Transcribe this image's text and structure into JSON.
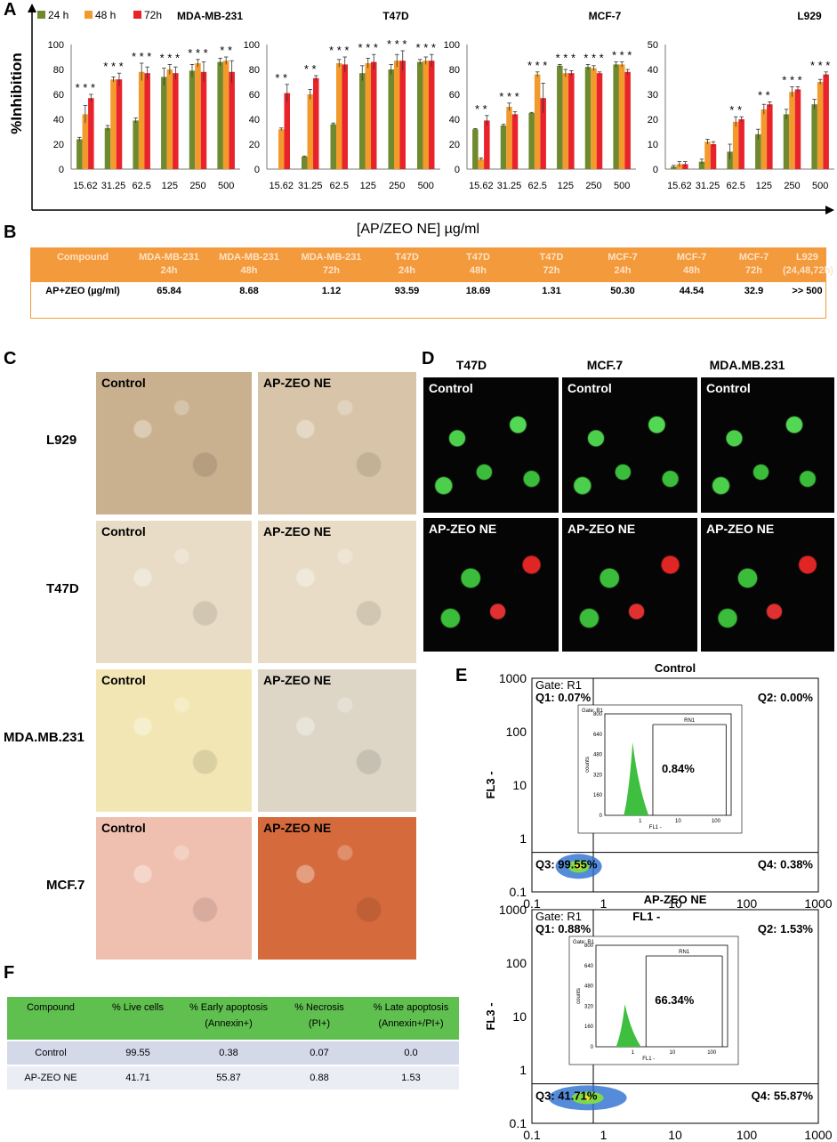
{
  "panels": {
    "a": "A",
    "b": "B",
    "c": "C",
    "d": "D",
    "e": "E",
    "f": "F"
  },
  "legend": [
    {
      "label": "24 h",
      "color": "#6f8a2e"
    },
    {
      "label": "48 h",
      "color": "#f39a2c"
    },
    {
      "label": "72h",
      "color": "#e8232b"
    }
  ],
  "y_axis_label": "%Inhibition",
  "x_axis_label": "[AP/ZEO NE] µg/ml",
  "chart_data": [
    {
      "type": "bar",
      "title": "MDA-MB-231",
      "categories": [
        "15.62",
        "31.25",
        "62.5",
        "125",
        "250",
        "500"
      ],
      "ylim": [
        0,
        100
      ],
      "yticks": [
        0,
        20,
        40,
        60,
        80,
        100
      ],
      "series": [
        {
          "name": "24 h",
          "values": [
            24,
            33,
            39,
            74,
            79,
            86
          ]
        },
        {
          "name": "48 h",
          "values": [
            44,
            72,
            78,
            80,
            85,
            87
          ]
        },
        {
          "name": "72h",
          "values": [
            57,
            72,
            77,
            77,
            78,
            78
          ]
        }
      ],
      "errors": [
        [
          1.5,
          2,
          2,
          7,
          5,
          3
        ],
        [
          7,
          2,
          7,
          4,
          3,
          3
        ],
        [
          3,
          5,
          5,
          5,
          8,
          9
        ]
      ],
      "significance": [
        "*  * *",
        "* * *",
        "*  * *",
        "* * *",
        "* * *",
        "* *"
      ]
    },
    {
      "type": "bar",
      "title": "T47D",
      "categories": [
        "15.62",
        "31.25",
        "62.5",
        "125",
        "250",
        "500"
      ],
      "ylim": [
        0,
        100
      ],
      "yticks": [
        0,
        20,
        40,
        60,
        80,
        100
      ],
      "series": [
        {
          "name": "24 h",
          "values": [
            0,
            10,
            36,
            77,
            80,
            86
          ]
        },
        {
          "name": "48 h",
          "values": [
            32,
            60,
            85,
            85,
            87,
            87
          ]
        },
        {
          "name": "72h",
          "values": [
            61,
            73,
            84,
            86,
            87,
            87
          ]
        }
      ],
      "errors": [
        [
          0,
          0.5,
          1,
          6,
          4,
          2
        ],
        [
          1,
          4,
          3,
          4,
          5,
          3
        ],
        [
          7,
          2,
          6,
          6,
          8,
          5
        ]
      ],
      "significance": [
        "* *",
        "* *",
        "* * *",
        "* * *",
        "* * *",
        "* * *"
      ]
    },
    {
      "type": "bar",
      "title": "MCF-7",
      "categories": [
        "15.62",
        "31.25",
        "62.5",
        "125",
        "250",
        "500"
      ],
      "ylim": [
        0,
        100
      ],
      "yticks": [
        0,
        20,
        40,
        60,
        80,
        100
      ],
      "series": [
        {
          "name": "24 h",
          "values": [
            32,
            35,
            45,
            83,
            82,
            84
          ]
        },
        {
          "name": "48 h",
          "values": [
            8,
            50,
            76,
            77,
            81,
            84
          ]
        },
        {
          "name": "72h",
          "values": [
            39,
            44,
            57,
            77,
            77,
            78
          ]
        }
      ],
      "errors": [
        [
          0.5,
          1,
          0.5,
          1,
          2,
          2
        ],
        [
          1,
          3,
          2,
          3,
          2,
          2
        ],
        [
          4,
          2,
          12,
          2,
          1,
          2
        ]
      ],
      "significance": [
        "* *",
        "* * *",
        "* * *",
        "* * *",
        "* * *",
        "* * *"
      ]
    },
    {
      "type": "bar",
      "title": "L929",
      "categories": [
        "15.62",
        "31.25",
        "62.5",
        "125",
        "250",
        "500"
      ],
      "ylim": [
        0,
        50
      ],
      "yticks": [
        0,
        10,
        20,
        30,
        40,
        50
      ],
      "series": [
        {
          "name": "24 h",
          "values": [
            1,
            3,
            7,
            14,
            22,
            26
          ]
        },
        {
          "name": "48 h",
          "values": [
            2,
            11,
            19,
            24,
            31,
            35
          ]
        },
        {
          "name": "72h",
          "values": [
            2,
            10,
            20,
            26,
            32,
            38
          ]
        }
      ],
      "errors": [
        [
          0.5,
          1,
          3,
          2,
          2,
          2
        ],
        [
          1,
          1,
          2,
          2,
          2,
          1
        ],
        [
          1,
          1,
          1,
          1,
          1,
          1
        ]
      ],
      "significance": [
        "",
        "",
        "* *",
        "* *",
        "* * *",
        "* * *"
      ]
    }
  ],
  "ic50_table": {
    "headers": [
      [
        "Compound",
        ""
      ],
      [
        "MDA-MB-231",
        "24h"
      ],
      [
        "MDA-MB-231",
        "48h"
      ],
      [
        "MDA-MB-231",
        "72h"
      ],
      [
        "T47D",
        "24h"
      ],
      [
        "T47D",
        "48h"
      ],
      [
        "T47D",
        "72h"
      ],
      [
        "MCF-7",
        "24h"
      ],
      [
        "MCF-7",
        "48h"
      ],
      [
        "MCF-7",
        "72h"
      ],
      [
        "L929",
        "(24,48,72h)"
      ]
    ],
    "row": [
      "AP+ZEO (µg/ml)",
      "65.84",
      "8.68",
      "1.12",
      "93.59",
      "18.69",
      "1.31",
      "50.30",
      "44.54",
      "32.9",
      ">> 500"
    ]
  },
  "panel_c": {
    "rows": [
      "L929",
      "T47D",
      "MDA.MB.231",
      "MCF.7"
    ],
    "control": "Control",
    "treated": "AP-ZEO NE"
  },
  "panel_d": {
    "columns": [
      "T47D",
      "MCF.7",
      "MDA.MB.231"
    ],
    "control": "Control",
    "treated": "AP-ZEO NE"
  },
  "flow": [
    {
      "title": "Control",
      "gate": "Gate: R1",
      "q1": "Q1: 0.07%",
      "q2": "Q2: 0.00%",
      "q3": "Q3: 99.55%",
      "q4": "Q4: 0.38%",
      "inset_pct": "0.84%",
      "inset_gate": "Gate: R1",
      "rn": "RN1",
      "inset_x": "FL1 -",
      "inset_y": "counts"
    },
    {
      "title": "AP-ZEO NE",
      "gate": "Gate: R1",
      "q1": "Q1: 0.88%",
      "q2": "Q2: 1.53%",
      "q3": "Q3: 41.71%",
      "q4": "Q4: 55.87%",
      "inset_pct": "66.34%",
      "inset_gate": "Gate: R1",
      "rn": "RN1",
      "inset_x": "FL1 -",
      "inset_y": "counts"
    }
  ],
  "flow_axes": {
    "x": "FL1 -",
    "y": "FL3 -",
    "ticks": [
      "0.1",
      "1",
      "10",
      "100",
      "1000"
    ],
    "inset_yticks": [
      "0",
      "160",
      "320",
      "480",
      "640",
      "800"
    ],
    "inset_xticks": [
      "1",
      "10",
      "100"
    ]
  },
  "apoptosis_table": {
    "headers": [
      [
        "Compound",
        ""
      ],
      [
        "% Live cells",
        ""
      ],
      [
        "% Early apoptosis",
        "(Annexin+)"
      ],
      [
        "% Necrosis",
        "(PI+)"
      ],
      [
        "% Late apoptosis",
        "(Annexin+/PI+)"
      ]
    ],
    "rows": [
      [
        "Control",
        "99.55",
        "0.38",
        "0.07",
        "0.0"
      ],
      [
        "AP-ZEO NE",
        "41.71",
        "55.87",
        "0.88",
        "1.53"
      ]
    ]
  }
}
